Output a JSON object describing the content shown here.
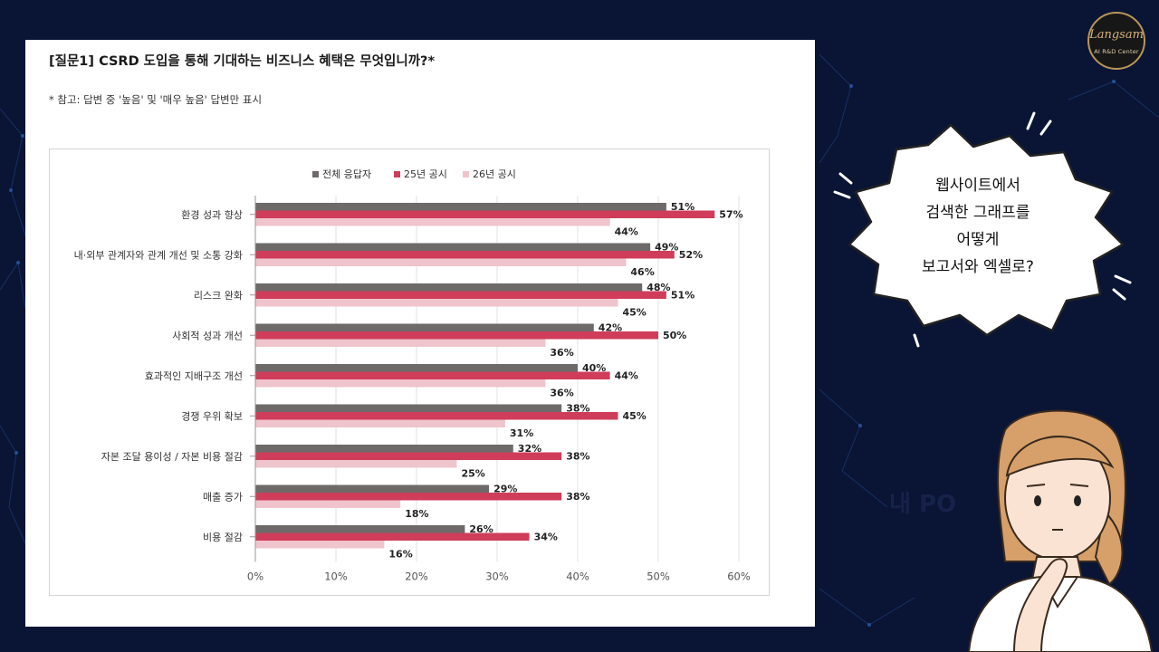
{
  "panel": {
    "title": "[질문1] CSRD 도입을 통해 기대하는 비즈니스 혜택은 무엇입니까?*",
    "note": "* 참고: 답변 중 '높음' 및 '매우 높음' 답변만 표시"
  },
  "logo": {
    "script": "Langsam",
    "subtitle": "AI R&D Center"
  },
  "callout": {
    "lines": [
      "웹사이트에서",
      "검색한 그래프를",
      "어떻게",
      "보고서와 엑셀로?"
    ]
  },
  "ghost_text": "내 PO",
  "colors": {
    "background": "#0a1535",
    "series_all": "#6e6a6a",
    "series_25": "#cf3d5a",
    "series_26": "#f0c4cc"
  },
  "chart_data": {
    "type": "bar",
    "orientation": "horizontal",
    "categories": [
      "환경 성과 향상",
      "내·외부 관계자와 관계 개선 및 소통 강화",
      "리스크 완화",
      "사회적 성과 개선",
      "효과적인 지배구조 개선",
      "경쟁 우위 확보",
      "자본 조달 용이성 / 자본 비용 절감",
      "매출 증가",
      "비용 절감"
    ],
    "series": [
      {
        "name": "전체 응답자",
        "values": [
          51,
          49,
          48,
          42,
          40,
          38,
          32,
          29,
          26
        ],
        "labels": [
          "51%",
          "49%",
          "48%",
          "42%",
          "40%",
          "38%",
          "32%",
          "29%",
          "26%"
        ]
      },
      {
        "name": "25년 공시",
        "values": [
          57,
          52,
          51,
          50,
          44,
          45,
          38,
          38,
          34
        ],
        "labels": [
          "57%",
          "52%",
          "51%",
          "50%",
          "44%",
          "45%",
          "38%",
          "38%",
          "34%"
        ]
      },
      {
        "name": "26년 공시",
        "values": [
          44,
          46,
          45,
          36,
          36,
          31,
          25,
          18,
          16
        ],
        "labels": [
          "44%",
          "46%",
          "45%",
          "36%",
          "36%",
          "31%",
          "25%",
          "18%",
          "16%"
        ]
      }
    ],
    "xlim": [
      0,
      60
    ],
    "xticks": [
      "0%",
      "10%",
      "20%",
      "30%",
      "40%",
      "50%",
      "60%"
    ],
    "legend": "top-center",
    "grid": true
  }
}
